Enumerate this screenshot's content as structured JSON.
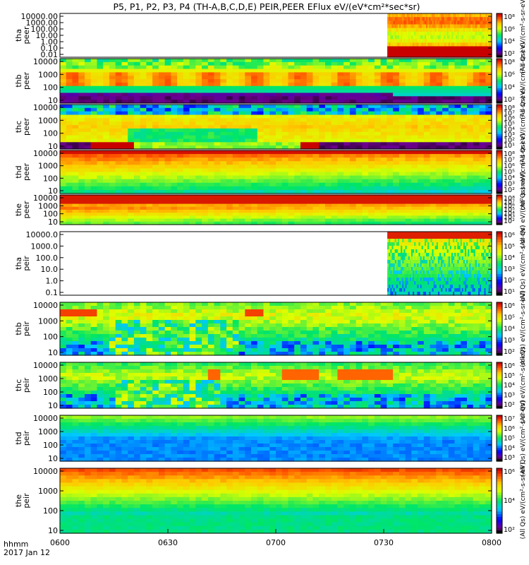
{
  "chart_data": {
    "type": "heatmap",
    "title": "P5, P1, P2, P3, P4 (TH-A,B,C,D,E) PEIR,PEER EFlux eV/(eV*cm²*sec*sr)",
    "x_axis": {
      "start": "0600",
      "end": "0800",
      "ticks": [
        "0600",
        "0630",
        "0700",
        "0730",
        "0800"
      ],
      "label_line1": "hhmm",
      "label_line2": "2017 Jan 12"
    },
    "y_scale": "log",
    "grid": false,
    "panels": [
      {
        "probe": "tha",
        "species": "peer",
        "ylabel_1": "tha",
        "ylabel_2": "peer",
        "ytick_labels": [
          "10000.00",
          "1000.00",
          "100.00",
          "10.00",
          "1.00",
          "0.10",
          "0.01"
        ],
        "cbar_labels": [
          "10⁸",
          "10⁶",
          "10⁴",
          "10²"
        ],
        "cbar_title": "(All Qs) eV/(cm²-s-sr-eV)",
        "data_start": "0731",
        "profile": "sparse_e"
      },
      {
        "probe": "thb",
        "species": "peer",
        "ylabel_1": "thb",
        "ylabel_2": "peer",
        "ytick_labels": [
          "10000",
          "1000",
          "100",
          "10"
        ],
        "cbar_labels": [
          "10⁸",
          "10⁶",
          "10⁴",
          "10²"
        ],
        "cbar_title": "(All Qs) eV/(cm²-s-sr-eV)",
        "data_start": "0600",
        "profile": "elec_b"
      },
      {
        "probe": "thc",
        "species": "peer",
        "ylabel_1": "thc",
        "ylabel_2": "peer",
        "ytick_labels": [
          "10000",
          "1000",
          "100",
          "10"
        ],
        "cbar_labels": [
          "10⁸",
          "10⁷",
          "10⁶",
          "10⁵",
          "10⁴",
          "10³",
          "10²",
          "10¹"
        ],
        "cbar_title": "(All Qs) eV/(cm²-s-sr-eV)",
        "data_start": "0600",
        "profile": "elec_c"
      },
      {
        "probe": "thd",
        "species": "peer",
        "ylabel_1": "thd",
        "ylabel_2": "peer",
        "ytick_labels": [
          "10000",
          "1000",
          "100",
          "10"
        ],
        "cbar_labels": [
          "10⁸",
          "10⁷",
          "10⁶",
          "10⁵",
          "10⁴",
          "10³",
          "10²"
        ],
        "cbar_title": "(All Qs) eV/(cm²-s-sr-eV)",
        "data_start": "0600",
        "profile": "elec_d"
      },
      {
        "probe": "the",
        "species": "peer",
        "ylabel_1": "the",
        "ylabel_2": "peer",
        "ytick_labels": [
          "10000",
          "1000",
          "100",
          "10"
        ],
        "cbar_labels": [
          "10⁸",
          "10⁷",
          "10⁶",
          "10⁵",
          "10⁴",
          "10³",
          "10²"
        ],
        "cbar_title": "(All Qs) eV/(cm²-s-sr-eV)",
        "data_start": "0600",
        "profile": "elec_e"
      },
      {
        "probe": "tha",
        "species": "peir",
        "ylabel_1": "tha",
        "ylabel_2": "peir",
        "ytick_labels": [
          "10000.0",
          "1000.0",
          "100.0",
          "10.0",
          "1.0",
          "0.1"
        ],
        "cbar_labels": [
          "10⁶",
          "10⁵",
          "10⁴",
          "10³",
          "10²",
          "10¹"
        ],
        "cbar_title": "(All Qs) eV/(cm²-s-sr-eV)",
        "data_start": "0731",
        "profile": "sparse_i"
      },
      {
        "probe": "thb",
        "species": "peir",
        "ylabel_1": "thb",
        "ylabel_2": "peir",
        "ytick_labels": [
          "10000",
          "1000",
          "100",
          "10"
        ],
        "cbar_labels": [
          "10⁶",
          "10⁵",
          "10⁴",
          "10³",
          "10²"
        ],
        "cbar_title": "(All Qs) eV/(cm²-s-sr-eV)",
        "data_start": "0600",
        "profile": "ion_b"
      },
      {
        "probe": "thc",
        "species": "peir",
        "ylabel_1": "thc",
        "ylabel_2": "peir",
        "ytick_labels": [
          "10000",
          "1000",
          "100",
          "10"
        ],
        "cbar_labels": [
          "10⁶",
          "10⁵",
          "10⁴",
          "10³",
          "10²"
        ],
        "cbar_title": "(All Qs) eV/(cm²-s-sr-eV)",
        "data_start": "0600",
        "profile": "ion_c"
      },
      {
        "probe": "thd",
        "species": "peir",
        "ylabel_1": "thd",
        "ylabel_2": "peir",
        "ytick_labels": [
          "10000",
          "1000",
          "100",
          "10"
        ],
        "cbar_labels": [
          "10⁷",
          "10⁶",
          "10⁵",
          "10⁴",
          "10³"
        ],
        "cbar_title": "(All Qs) eV/(cm²-s-sr-eV)",
        "data_start": "0600",
        "profile": "ion_d"
      },
      {
        "probe": "the",
        "species": "peir",
        "ylabel_1": "the",
        "ylabel_2": "peir",
        "ytick_labels": [
          "10000",
          "1000",
          "100",
          "10"
        ],
        "cbar_labels": [
          "10⁶",
          "10⁴",
          "10²"
        ],
        "cbar_title": "(All Qs) eV/(cm²-s-sr-eV)",
        "data_start": "0600",
        "profile": "ion_e"
      }
    ]
  }
}
